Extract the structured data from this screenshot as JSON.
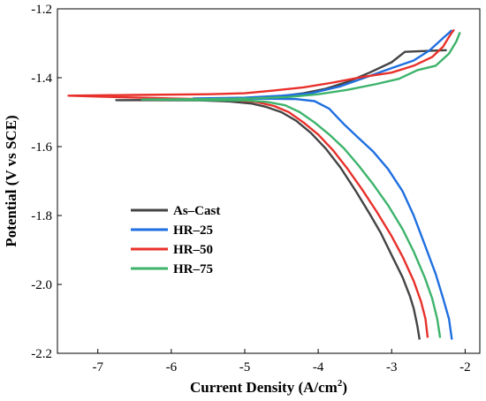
{
  "chart_data": {
    "type": "line",
    "title": "",
    "xlabel": "Current Density (A/cm",
    "xlabel_sup": "2",
    "xlabel_end": ")",
    "ylabel": "Potential (V vs SCE)",
    "xlim": [
      -7.55,
      -1.8
    ],
    "ylim": [
      -2.2,
      -1.2
    ],
    "xticks": [
      -7,
      -6,
      -5,
      -4,
      -3,
      -2
    ],
    "yticks": [
      -2.2,
      -2.0,
      -1.8,
      -1.6,
      -1.4,
      -1.2
    ],
    "xtick_labels": [
      "-7",
      "-6",
      "-5",
      "-4",
      "-3",
      "-2"
    ],
    "ytick_labels": [
      "-2.2",
      "-2.0",
      "-1.8",
      "-1.6",
      "-1.4",
      "-1.2"
    ],
    "grid": false,
    "legend": "center-left",
    "series": [
      {
        "name": "As–Cast",
        "color": "#444444",
        "points": [
          [
            -2.62,
            -2.16
          ],
          [
            -2.65,
            -2.12
          ],
          [
            -2.7,
            -2.07
          ],
          [
            -2.75,
            -2.035
          ],
          [
            -2.85,
            -1.98
          ],
          [
            -3.0,
            -1.915
          ],
          [
            -3.15,
            -1.85
          ],
          [
            -3.3,
            -1.795
          ],
          [
            -3.5,
            -1.725
          ],
          [
            -3.7,
            -1.66
          ],
          [
            -3.9,
            -1.605
          ],
          [
            -4.1,
            -1.56
          ],
          [
            -4.3,
            -1.525
          ],
          [
            -4.5,
            -1.5
          ],
          [
            -4.7,
            -1.485
          ],
          [
            -4.9,
            -1.475
          ],
          [
            -5.2,
            -1.469
          ],
          [
            -5.6,
            -1.466
          ],
          [
            -6.2,
            -1.465
          ],
          [
            -6.75,
            -1.465
          ],
          [
            -5.8,
            -1.464
          ],
          [
            -5.0,
            -1.462
          ],
          [
            -4.6,
            -1.456
          ],
          [
            -4.2,
            -1.445
          ],
          [
            -3.9,
            -1.432
          ],
          [
            -3.6,
            -1.412
          ],
          [
            -3.3,
            -1.385
          ],
          [
            -3.0,
            -1.355
          ],
          [
            -2.82,
            -1.325
          ],
          [
            -2.5,
            -1.322
          ],
          [
            -2.25,
            -1.32
          ]
        ]
      },
      {
        "name": "HR–25",
        "color": "#1f6fe0",
        "points": [
          [
            -2.18,
            -2.16
          ],
          [
            -2.22,
            -2.1
          ],
          [
            -2.3,
            -2.04
          ],
          [
            -2.4,
            -1.97
          ],
          [
            -2.55,
            -1.885
          ],
          [
            -2.7,
            -1.8
          ],
          [
            -2.85,
            -1.73
          ],
          [
            -3.05,
            -1.665
          ],
          [
            -3.25,
            -1.615
          ],
          [
            -3.45,
            -1.575
          ],
          [
            -3.65,
            -1.535
          ],
          [
            -3.85,
            -1.49
          ],
          [
            -4.05,
            -1.468
          ],
          [
            -4.3,
            -1.462
          ],
          [
            -4.7,
            -1.461
          ],
          [
            -5.3,
            -1.461
          ],
          [
            -5.7,
            -1.46
          ],
          [
            -5.0,
            -1.458
          ],
          [
            -4.5,
            -1.452
          ],
          [
            -4.1,
            -1.445
          ],
          [
            -3.7,
            -1.425
          ],
          [
            -3.3,
            -1.395
          ],
          [
            -3.0,
            -1.372
          ],
          [
            -2.7,
            -1.35
          ],
          [
            -2.48,
            -1.32
          ],
          [
            -2.3,
            -1.285
          ],
          [
            -2.18,
            -1.262
          ]
        ]
      },
      {
        "name": "HR–50",
        "color": "#e8302a",
        "points": [
          [
            -2.51,
            -2.155
          ],
          [
            -2.54,
            -2.1
          ],
          [
            -2.6,
            -2.05
          ],
          [
            -2.7,
            -1.99
          ],
          [
            -2.85,
            -1.92
          ],
          [
            -3.0,
            -1.86
          ],
          [
            -3.2,
            -1.79
          ],
          [
            -3.4,
            -1.725
          ],
          [
            -3.6,
            -1.665
          ],
          [
            -3.8,
            -1.61
          ],
          [
            -4.0,
            -1.565
          ],
          [
            -4.2,
            -1.53
          ],
          [
            -4.4,
            -1.5
          ],
          [
            -4.6,
            -1.482
          ],
          [
            -4.85,
            -1.47
          ],
          [
            -5.2,
            -1.464
          ],
          [
            -6.0,
            -1.46
          ],
          [
            -6.8,
            -1.456
          ],
          [
            -7.4,
            -1.452
          ],
          [
            -6.5,
            -1.45
          ],
          [
            -5.5,
            -1.448
          ],
          [
            -5.0,
            -1.445
          ],
          [
            -4.6,
            -1.437
          ],
          [
            -4.2,
            -1.428
          ],
          [
            -3.8,
            -1.414
          ],
          [
            -3.4,
            -1.398
          ],
          [
            -3.0,
            -1.385
          ],
          [
            -2.7,
            -1.365
          ],
          [
            -2.45,
            -1.34
          ],
          [
            -2.3,
            -1.31
          ],
          [
            -2.2,
            -1.275
          ],
          [
            -2.15,
            -1.26
          ]
        ]
      },
      {
        "name": "HR–75",
        "color": "#3db36b",
        "points": [
          [
            -2.34,
            -2.155
          ],
          [
            -2.38,
            -2.1
          ],
          [
            -2.45,
            -2.04
          ],
          [
            -2.55,
            -1.98
          ],
          [
            -2.7,
            -1.905
          ],
          [
            -2.85,
            -1.84
          ],
          [
            -3.05,
            -1.77
          ],
          [
            -3.25,
            -1.71
          ],
          [
            -3.45,
            -1.655
          ],
          [
            -3.65,
            -1.605
          ],
          [
            -3.85,
            -1.565
          ],
          [
            -4.05,
            -1.53
          ],
          [
            -4.25,
            -1.5
          ],
          [
            -4.45,
            -1.48
          ],
          [
            -4.7,
            -1.47
          ],
          [
            -5.0,
            -1.466
          ],
          [
            -5.6,
            -1.465
          ],
          [
            -6.4,
            -1.463
          ],
          [
            -5.5,
            -1.462
          ],
          [
            -4.9,
            -1.46
          ],
          [
            -4.4,
            -1.456
          ],
          [
            -4.0,
            -1.448
          ],
          [
            -3.6,
            -1.435
          ],
          [
            -3.2,
            -1.418
          ],
          [
            -2.9,
            -1.403
          ],
          [
            -2.65,
            -1.378
          ],
          [
            -2.4,
            -1.365
          ],
          [
            -2.22,
            -1.33
          ],
          [
            -2.12,
            -1.295
          ],
          [
            -2.07,
            -1.268
          ]
        ]
      }
    ]
  }
}
